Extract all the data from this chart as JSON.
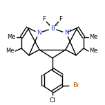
{
  "bg_color": "#ffffff",
  "bond_color": "#000000",
  "bond_width": 1.0,
  "dbo": 0.012,
  "figsize": [
    1.52,
    1.52
  ],
  "dpi": 100,
  "xlim": [
    0,
    152
  ],
  "ylim": [
    0,
    152
  ]
}
